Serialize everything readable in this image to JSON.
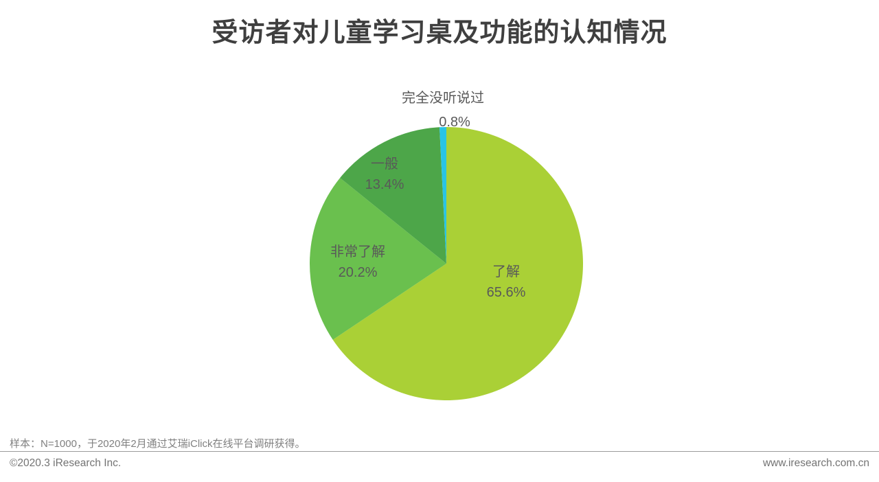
{
  "header": {
    "title": "受访者对儿童学习桌及功能的认知情况"
  },
  "chart_data": {
    "type": "pie",
    "title": "受访者对儿童学习桌及功能的认知情况",
    "start_angle_deg": 0,
    "direction": "clockwise",
    "legend_position": "none",
    "labels_on_chart": true,
    "categories": [
      "了解",
      "非常了解",
      "一般",
      "完全没听说过"
    ],
    "values": [
      65.6,
      20.2,
      13.4,
      0.8
    ],
    "segments": [
      {
        "label": "了解",
        "value": 65.6,
        "display": "65.6%",
        "color": "#aad036"
      },
      {
        "label": "非常了解",
        "value": 20.2,
        "display": "20.2%",
        "color": "#6ac04e"
      },
      {
        "label": "一般",
        "value": 13.4,
        "display": "13.4%",
        "color": "#4da649"
      },
      {
        "label": "完全没听说过",
        "value": 0.8,
        "display": "0.8%",
        "color": "#29c4e5"
      }
    ],
    "label_color": "#595959"
  },
  "footer": {
    "note": "样本：N=1000，于2020年2月通过艾瑞iClick在线平台调研获得。",
    "copyright": "©2020.3 iResearch Inc.",
    "website": "www.iresearch.com.cn"
  }
}
